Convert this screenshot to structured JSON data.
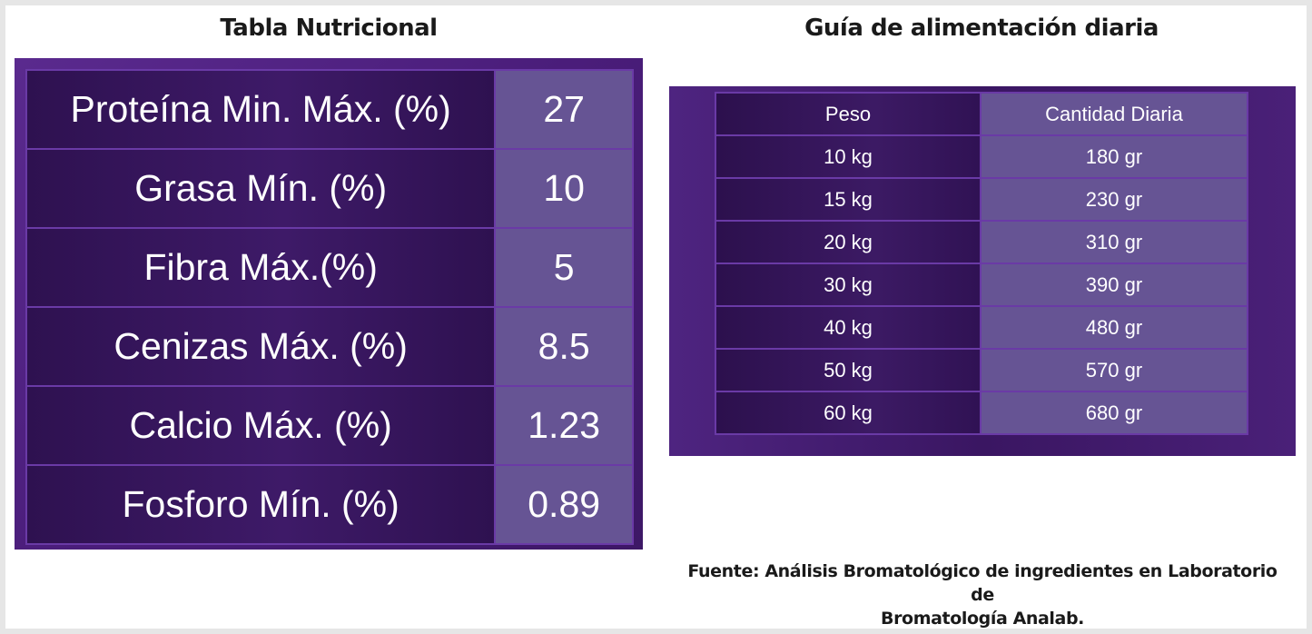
{
  "nutrition": {
    "title": "Tabla Nutricional",
    "rows": [
      {
        "label": "Proteína Min. Máx. (%)",
        "value": "27"
      },
      {
        "label": "Grasa Mín. (%)",
        "value": "10"
      },
      {
        "label": "Fibra Máx.(%)",
        "value": "5"
      },
      {
        "label": "Cenizas Máx. (%)",
        "value": "8.5"
      },
      {
        "label": "Calcio Máx. (%)",
        "value": "1.23"
      },
      {
        "label": "Fosforo Mín. (%)",
        "value": "0.89"
      }
    ]
  },
  "feeding": {
    "title": "Guía de alimentación diaria",
    "headers": {
      "weight": "Peso",
      "amount": "Cantidad Diaria"
    },
    "rows": [
      {
        "weight": "10 kg",
        "amount": "180 gr"
      },
      {
        "weight": "15 kg",
        "amount": "230 gr"
      },
      {
        "weight": "20 kg",
        "amount": "310 gr"
      },
      {
        "weight": "30 kg",
        "amount": "390 gr"
      },
      {
        "weight": "40 kg",
        "amount": "480 gr"
      },
      {
        "weight": "50 kg",
        "amount": "570 gr"
      },
      {
        "weight": "60 kg",
        "amount": "680 gr"
      }
    ]
  },
  "source": {
    "line1": "Fuente: Análisis Bromatológico de ingredientes en Laboratorio de",
    "line2": "Bromatología Analab."
  },
  "colors": {
    "panel": "#4a1d7a",
    "value_cell": "#665494",
    "border": "#6a3aa6"
  }
}
